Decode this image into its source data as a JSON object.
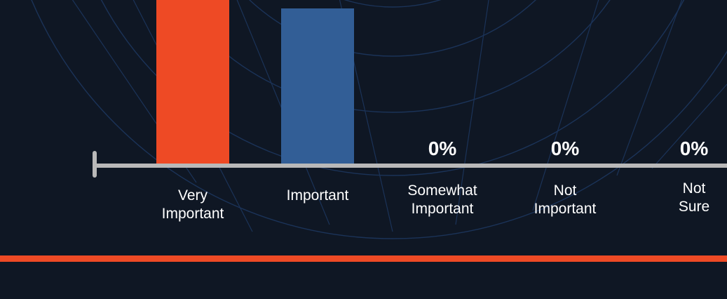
{
  "chart_data": {
    "type": "bar",
    "categories": [
      [
        "Very",
        "Important"
      ],
      [
        "Important"
      ],
      [
        "Somewhat",
        "Important"
      ],
      [
        "Not",
        "Important"
      ],
      [
        "Not",
        "Sure"
      ]
    ],
    "values": [
      null,
      null,
      0,
      0,
      0
    ],
    "value_labels": [
      "",
      "",
      "0%",
      "0%",
      "0%"
    ],
    "bar_colors": [
      "#ee4a25",
      "#325e96",
      "#325e96",
      "#325e96",
      "#325e96"
    ],
    "title": "",
    "xlabel": "",
    "ylabel": "",
    "grid": false
  },
  "colors": {
    "background": "#0f1724",
    "axis": "#b9b9b9",
    "accent_rule": "#ee4a25",
    "decor_lines": "#1b3358"
  },
  "_note_visible_only": "Bar heights for first two categories are clipped at top of screenshot."
}
